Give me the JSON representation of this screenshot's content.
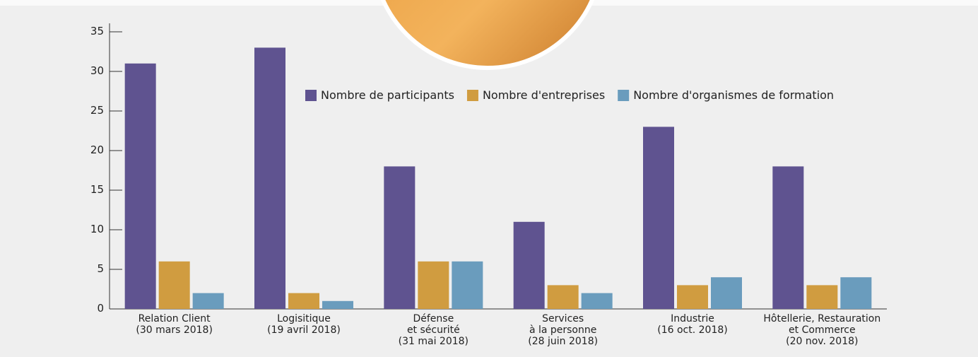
{
  "chart_data": {
    "type": "bar",
    "categories": [
      [
        "Relation Client",
        "(30 mars 2018)"
      ],
      [
        "Logisitique",
        "(19 avril 2018)"
      ],
      [
        "Défense",
        "et sécurité",
        "(31 mai 2018)"
      ],
      [
        "Services",
        "à la personne",
        "(28 juin 2018)"
      ],
      [
        "Industrie",
        "(16 oct. 2018)"
      ],
      [
        "Hôtellerie, Restauration",
        "et Commerce",
        "(20 nov. 2018)"
      ]
    ],
    "series": [
      {
        "name": "Nombre de participants",
        "color": "#5f5390",
        "values": [
          31,
          33,
          18,
          11,
          23,
          18
        ]
      },
      {
        "name": "Nombre d'entreprises",
        "color": "#d09c40",
        "values": [
          6,
          2,
          6,
          3,
          3,
          3
        ]
      },
      {
        "name": "Nombre d'organismes de formation",
        "color": "#6a9cbd",
        "values": [
          2,
          1,
          6,
          2,
          4,
          4
        ]
      }
    ],
    "ylim": [
      0,
      35
    ],
    "yticks": [
      0,
      5,
      10,
      15,
      20,
      25,
      30,
      35
    ],
    "legend": "top"
  }
}
